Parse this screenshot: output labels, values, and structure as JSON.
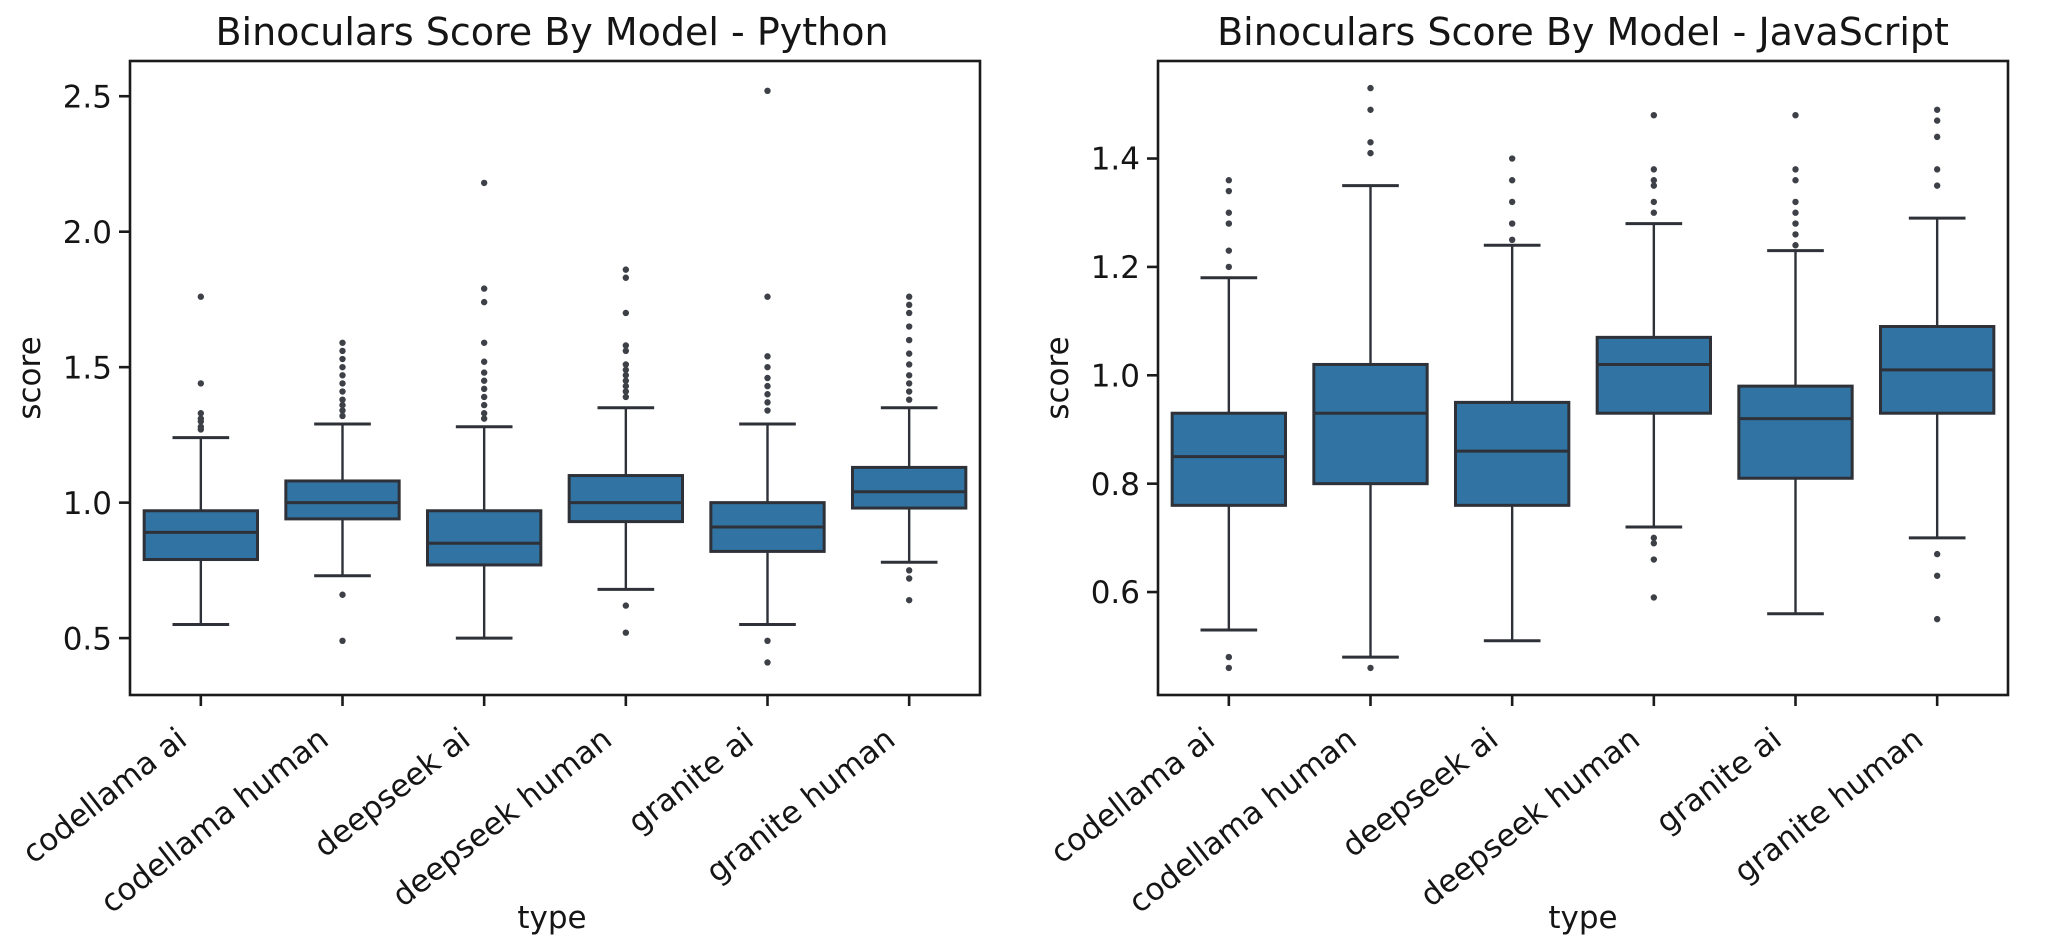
{
  "figure": {
    "background": "#ffffff"
  },
  "style": {
    "box_color": "#3173A2",
    "line_color": "#2E3238",
    "spine_color": "#1B1B1B",
    "flier_color": "#3D4147",
    "text_color": "#151515"
  },
  "chart_data": [
    {
      "type": "box",
      "title": "Binoculars Score By Model - Python",
      "xlabel": "type",
      "ylabel": "score",
      "categories": [
        "codellama ai",
        "codellama human",
        "deepseek ai",
        "deepseek human",
        "granite ai",
        "granite human"
      ],
      "yticks": [
        0.5,
        1.0,
        1.5,
        2.0,
        2.5
      ],
      "yticklabels": [
        "0.5",
        "1.0",
        "1.5",
        "2.0",
        "2.5"
      ],
      "ylim": [
        0.29,
        2.63
      ],
      "grid": false,
      "legend_position": "none",
      "boxes": [
        {
          "category": "codellama ai",
          "whisker_low": 0.55,
          "q1": 0.79,
          "median": 0.89,
          "q3": 0.97,
          "whisker_high": 1.24,
          "outliers_low": [],
          "outliers_high": [
            1.27,
            1.28,
            1.3,
            1.31,
            1.33,
            1.44,
            1.76
          ]
        },
        {
          "category": "codellama human",
          "whisker_low": 0.73,
          "q1": 0.94,
          "median": 1.0,
          "q3": 1.08,
          "whisker_high": 1.29,
          "outliers_low": [
            0.66,
            0.49
          ],
          "outliers_high": [
            1.32,
            1.34,
            1.36,
            1.38,
            1.41,
            1.44,
            1.47,
            1.5,
            1.53,
            1.56,
            1.59
          ]
        },
        {
          "category": "deepseek ai",
          "whisker_low": 0.5,
          "q1": 0.77,
          "median": 0.85,
          "q3": 0.97,
          "whisker_high": 1.28,
          "outliers_low": [],
          "outliers_high": [
            1.31,
            1.33,
            1.36,
            1.39,
            1.42,
            1.45,
            1.48,
            1.52,
            1.59,
            1.74,
            1.79,
            2.18
          ]
        },
        {
          "category": "deepseek human",
          "whisker_low": 0.68,
          "q1": 0.93,
          "median": 1.0,
          "q3": 1.1,
          "whisker_high": 1.35,
          "outliers_low": [
            0.62,
            0.52
          ],
          "outliers_high": [
            1.39,
            1.41,
            1.43,
            1.45,
            1.47,
            1.49,
            1.51,
            1.56,
            1.58,
            1.7,
            1.83,
            1.86
          ]
        },
        {
          "category": "granite ai",
          "whisker_low": 0.55,
          "q1": 0.82,
          "median": 0.91,
          "q3": 1.0,
          "whisker_high": 1.29,
          "outliers_low": [
            0.49,
            0.41
          ],
          "outliers_high": [
            1.34,
            1.37,
            1.4,
            1.43,
            1.46,
            1.5,
            1.54,
            1.76,
            2.52
          ]
        },
        {
          "category": "granite human",
          "whisker_low": 0.78,
          "q1": 0.98,
          "median": 1.04,
          "q3": 1.13,
          "whisker_high": 1.35,
          "outliers_low": [
            0.75,
            0.72,
            0.64
          ],
          "outliers_high": [
            1.38,
            1.41,
            1.44,
            1.47,
            1.51,
            1.55,
            1.6,
            1.65,
            1.7,
            1.73,
            1.76
          ]
        }
      ]
    },
    {
      "type": "box",
      "title": "Binoculars Score By Model - JavaScript",
      "xlabel": "type",
      "ylabel": "score",
      "categories": [
        "codellama ai",
        "codellama human",
        "deepseek ai",
        "deepseek human",
        "granite ai",
        "granite human"
      ],
      "yticks": [
        0.6,
        0.8,
        1.0,
        1.2,
        1.4
      ],
      "yticklabels": [
        "0.6",
        "0.8",
        "1.0",
        "1.2",
        "1.4"
      ],
      "ylim": [
        0.41,
        1.58
      ],
      "grid": false,
      "legend_position": "none",
      "boxes": [
        {
          "category": "codellama ai",
          "whisker_low": 0.53,
          "q1": 0.76,
          "median": 0.85,
          "q3": 0.93,
          "whisker_high": 1.18,
          "outliers_low": [
            0.48,
            0.46
          ],
          "outliers_high": [
            1.2,
            1.23,
            1.28,
            1.3,
            1.34,
            1.36
          ]
        },
        {
          "category": "codellama human",
          "whisker_low": 0.48,
          "q1": 0.8,
          "median": 0.93,
          "q3": 1.02,
          "whisker_high": 1.35,
          "outliers_low": [
            0.46
          ],
          "outliers_high": [
            1.41,
            1.43,
            1.49,
            1.53
          ]
        },
        {
          "category": "deepseek ai",
          "whisker_low": 0.51,
          "q1": 0.76,
          "median": 0.86,
          "q3": 0.95,
          "whisker_high": 1.24,
          "outliers_low": [],
          "outliers_high": [
            1.25,
            1.28,
            1.32,
            1.36,
            1.4
          ]
        },
        {
          "category": "deepseek human",
          "whisker_low": 0.72,
          "q1": 0.93,
          "median": 1.02,
          "q3": 1.07,
          "whisker_high": 1.28,
          "outliers_low": [
            0.7,
            0.69,
            0.66,
            0.59
          ],
          "outliers_high": [
            1.3,
            1.32,
            1.35,
            1.36,
            1.38,
            1.48
          ]
        },
        {
          "category": "granite ai",
          "whisker_low": 0.56,
          "q1": 0.81,
          "median": 0.92,
          "q3": 0.98,
          "whisker_high": 1.23,
          "outliers_low": [],
          "outliers_high": [
            1.24,
            1.26,
            1.28,
            1.3,
            1.32,
            1.36,
            1.38,
            1.48
          ]
        },
        {
          "category": "granite human",
          "whisker_low": 0.7,
          "q1": 0.93,
          "median": 1.01,
          "q3": 1.09,
          "whisker_high": 1.29,
          "outliers_low": [
            0.67,
            0.63,
            0.55
          ],
          "outliers_high": [
            1.35,
            1.38,
            1.44,
            1.47,
            1.49
          ]
        }
      ]
    }
  ]
}
